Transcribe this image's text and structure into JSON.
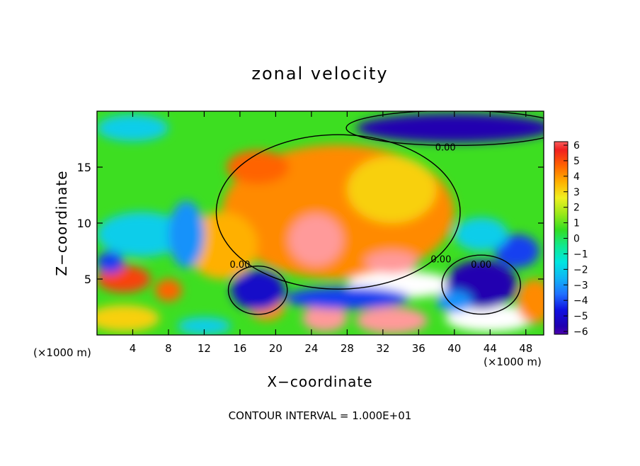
{
  "chart_data": {
    "type": "heatmap",
    "title": "zonal velocity",
    "xlabel": "X−coordinate",
    "ylabel": "Z−coordinate",
    "x_unit_left": "(×1000 m)",
    "x_unit_right": "(×1000 m)",
    "footer": "CONTOUR INTERVAL = 1.000E+01",
    "xlim": [
      0,
      50
    ],
    "ylim": [
      0,
      20
    ],
    "x_ticks": [
      4,
      8,
      12,
      16,
      20,
      24,
      28,
      32,
      36,
      40,
      44,
      48
    ],
    "y_ticks": [
      5,
      10,
      15
    ],
    "color_range": [
      -6,
      6
    ],
    "colorbar_ticks": [
      6,
      5,
      4,
      3,
      2,
      1,
      0,
      -1,
      -2,
      -3,
      -4,
      -5,
      -6
    ],
    "colorbar_labels": [
      "6",
      "5",
      "4",
      "3",
      "2",
      "1",
      "0",
      "−1",
      "−2",
      "−3",
      "−4",
      "−5",
      "−6"
    ],
    "contour_labels": [
      {
        "text": "0.00",
        "x": 39,
        "z": 16.5
      },
      {
        "text": "0.00",
        "x": 16,
        "z": 6
      },
      {
        "text": "0.00",
        "x": 38.5,
        "z": 6.5
      },
      {
        "text": "0.00",
        "x": 43,
        "z": 6
      }
    ],
    "features": [
      {
        "kind": "background",
        "x": 25,
        "z": 10,
        "rx": 30,
        "rz": 15,
        "value": 0.5
      },
      {
        "kind": "jet",
        "x": 27,
        "z": 11,
        "rx": 13,
        "rz": 6,
        "value": 4
      },
      {
        "kind": "jet-core",
        "x": 24.5,
        "z": 8.5,
        "rx": 3,
        "rz": 2.3,
        "value": 6.5
      },
      {
        "kind": "jet",
        "x": 18,
        "z": 15,
        "rx": 3.5,
        "rz": 1.5,
        "value": 4.5
      },
      {
        "kind": "jet",
        "x": 14,
        "z": 8,
        "rx": 4,
        "rz": 3,
        "value": 3.5
      },
      {
        "kind": "jet",
        "x": 33,
        "z": 13,
        "rx": 5,
        "rz": 3,
        "value": 3
      },
      {
        "kind": "jet-core",
        "x": 34,
        "z": 4.5,
        "rx": 6,
        "rz": 1.2,
        "value": 7
      },
      {
        "kind": "jet-core",
        "x": 33,
        "z": 6.5,
        "rx": 3,
        "rz": 1,
        "value": 6.5
      },
      {
        "kind": "jet-core",
        "x": 44,
        "z": 1.5,
        "rx": 5,
        "rz": 1.2,
        "value": 7
      },
      {
        "kind": "jet-core",
        "x": 25.5,
        "z": 1.5,
        "rx": 2.5,
        "rz": 1.2,
        "value": 6.5
      },
      {
        "kind": "jet-core",
        "x": 33,
        "z": 1.3,
        "rx": 4,
        "rz": 1.2,
        "value": 6.5
      },
      {
        "kind": "jet",
        "x": 3,
        "z": 5,
        "rx": 3,
        "rz": 1.2,
        "value": 5
      },
      {
        "kind": "jet",
        "x": 8,
        "z": 4,
        "rx": 1.5,
        "rz": 1,
        "value": 4.5
      },
      {
        "kind": "jet",
        "x": 3,
        "z": 1.5,
        "rx": 4,
        "rz": 1.2,
        "value": 3
      },
      {
        "kind": "jet",
        "x": 19,
        "z": 2.5,
        "rx": 2,
        "rz": 1.2,
        "value": 4
      },
      {
        "kind": "jet",
        "x": 49,
        "z": 3,
        "rx": 2,
        "rz": 2,
        "value": 4
      },
      {
        "kind": "easterly",
        "x": 40,
        "z": 18.5,
        "rx": 11,
        "rz": 1.3,
        "value": -5.5
      },
      {
        "kind": "easterly",
        "x": 4,
        "z": 18.5,
        "rx": 4,
        "rz": 1.2,
        "value": -2
      },
      {
        "kind": "easterly",
        "x": 5,
        "z": 9,
        "rx": 5,
        "rz": 2,
        "value": -2
      },
      {
        "kind": "easterly",
        "x": 10,
        "z": 9,
        "rx": 2,
        "rz": 3,
        "value": -3
      },
      {
        "kind": "easterly",
        "x": 18,
        "z": 4,
        "rx": 3,
        "rz": 1.8,
        "value": -5
      },
      {
        "kind": "easterly",
        "x": 28,
        "z": 3.3,
        "rx": 7,
        "rz": 1,
        "value": -4
      },
      {
        "kind": "easterly",
        "x": 43,
        "z": 4.5,
        "rx": 4,
        "rz": 2.2,
        "value": -5.5
      },
      {
        "kind": "easterly",
        "x": 47,
        "z": 7.5,
        "rx": 2.5,
        "rz": 1.5,
        "value": -4
      },
      {
        "kind": "easterly",
        "x": 43,
        "z": 9,
        "rx": 3,
        "rz": 1.5,
        "value": -2
      },
      {
        "kind": "easterly",
        "x": 1.5,
        "z": 6.5,
        "rx": 1.5,
        "rz": 1,
        "value": -4
      },
      {
        "kind": "easterly",
        "x": 12,
        "z": 0.8,
        "rx": 3,
        "rz": 0.8,
        "value": -2
      },
      {
        "kind": "easterly",
        "x": 40,
        "z": 3,
        "rx": 2,
        "rz": 1,
        "value": -3
      }
    ]
  }
}
